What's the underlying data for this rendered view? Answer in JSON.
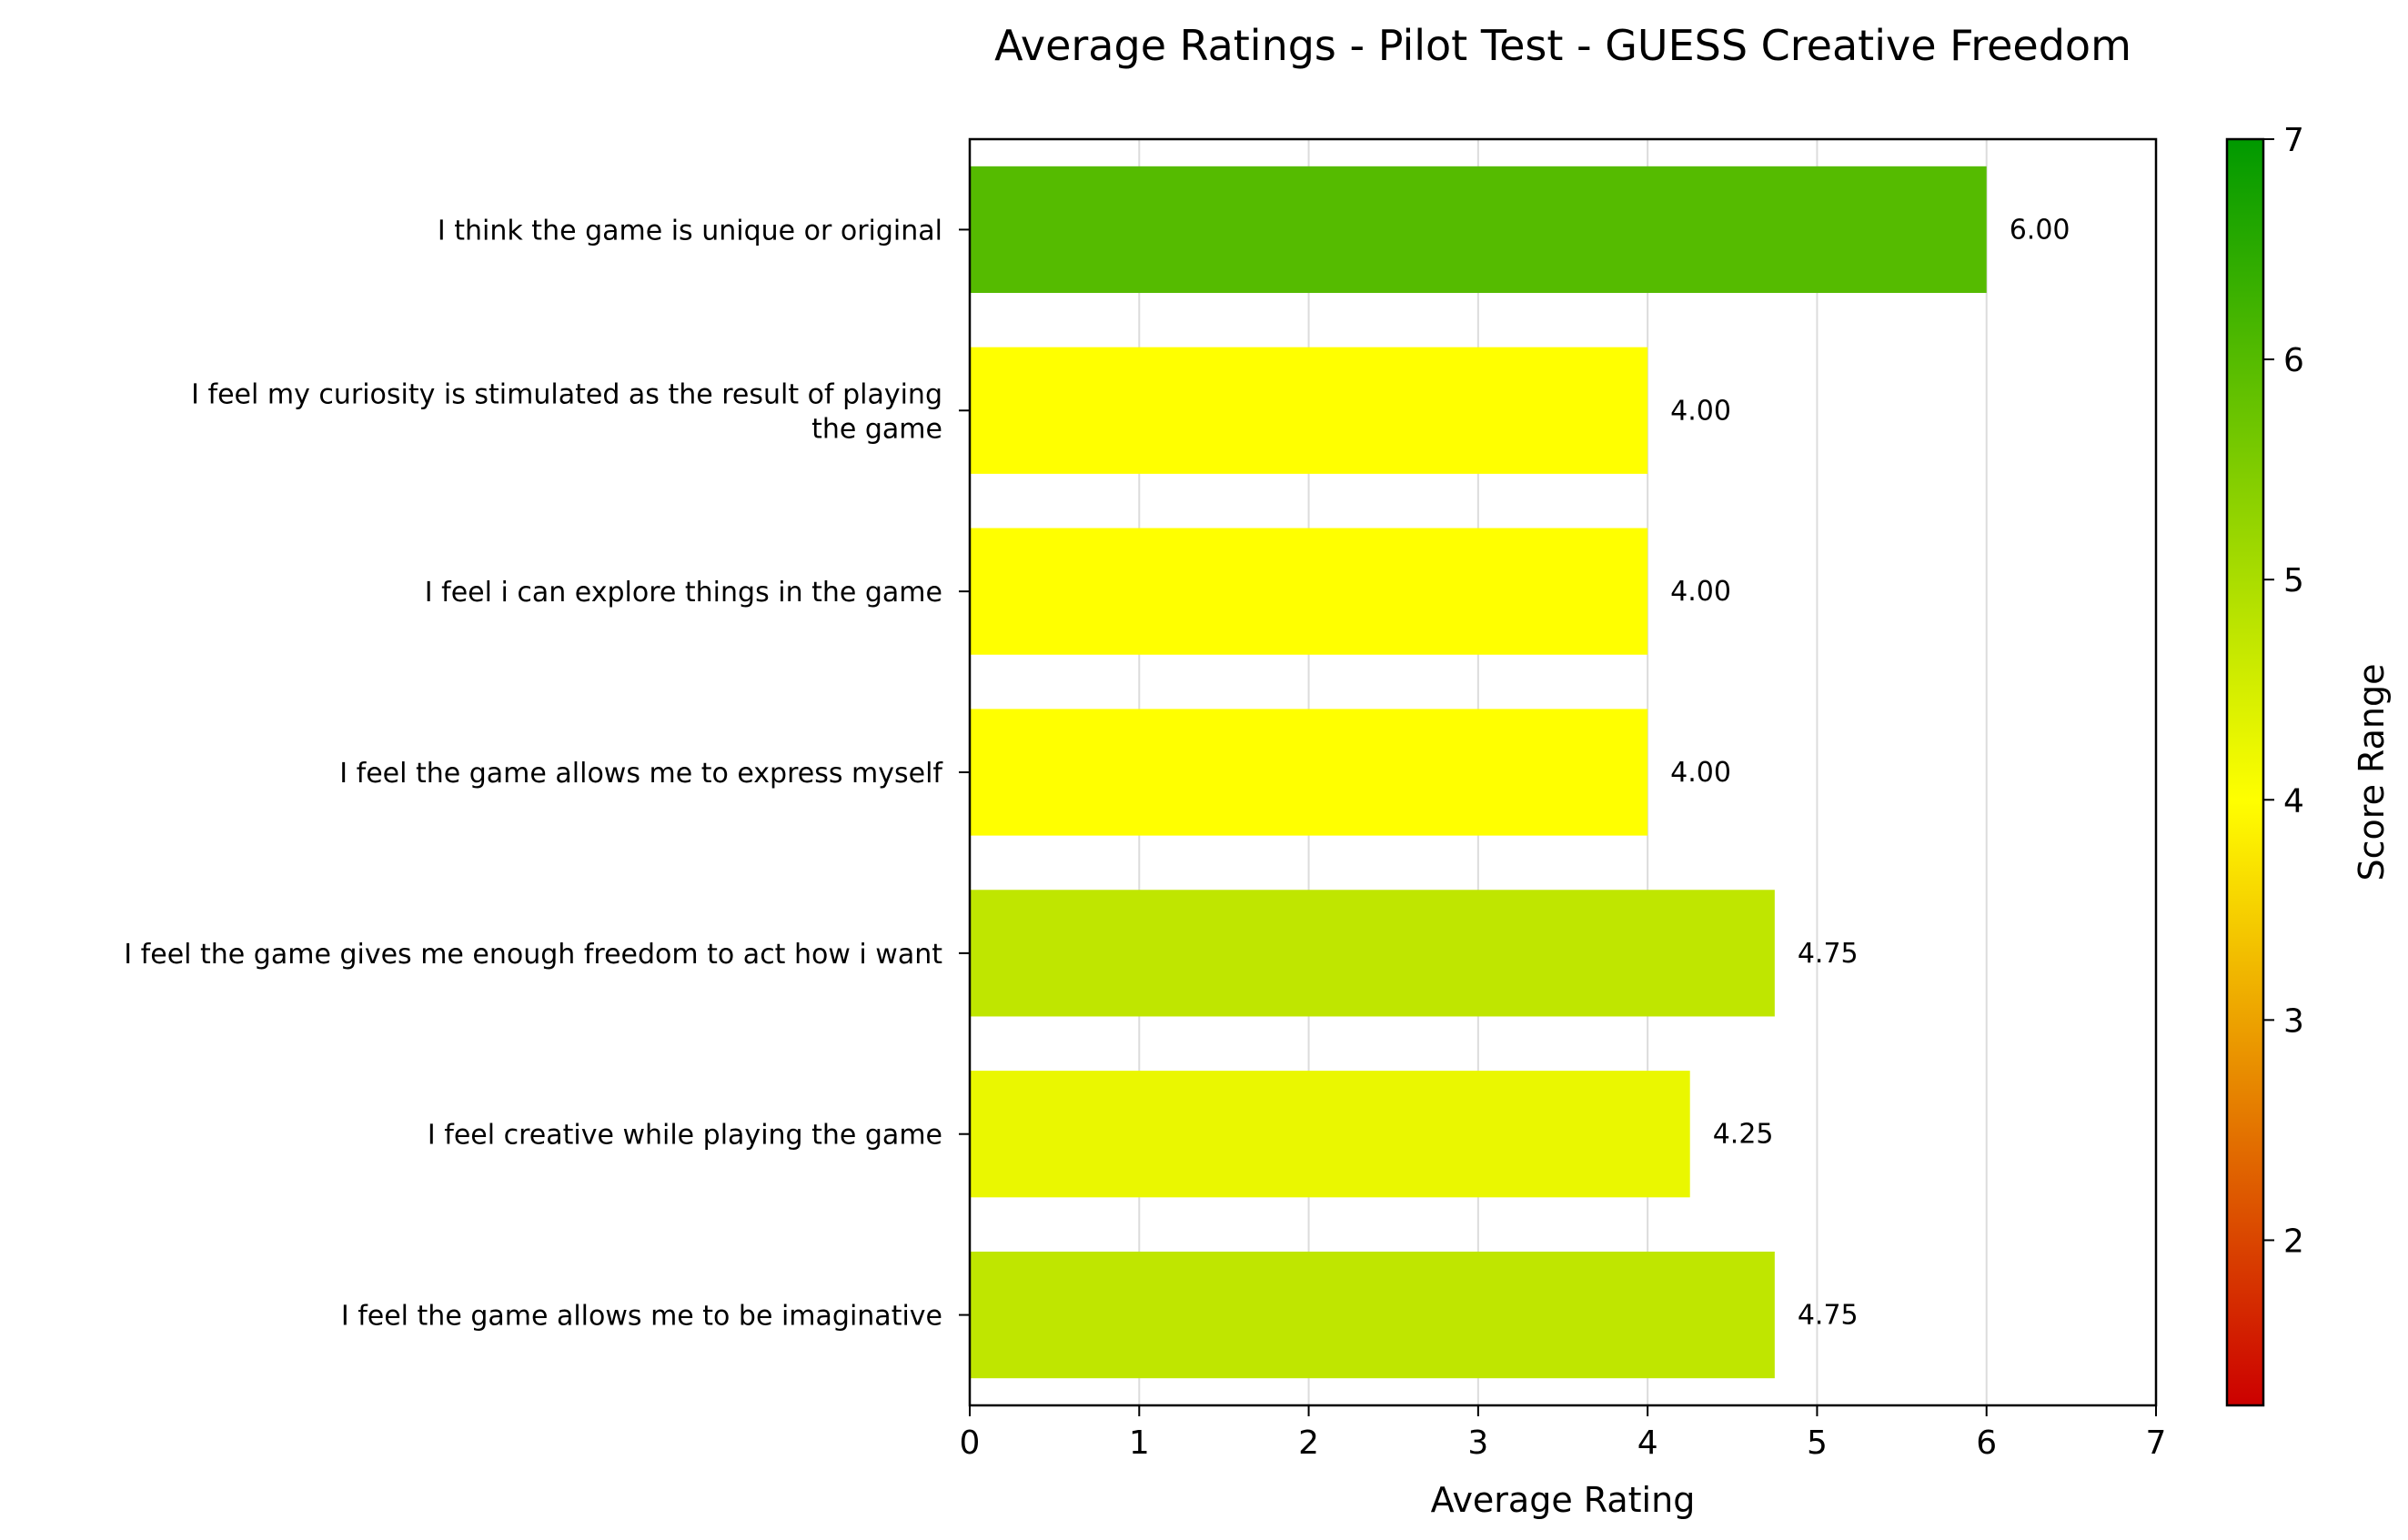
{
  "chart_data": {
    "type": "bar",
    "orientation": "horizontal",
    "title": "Average Ratings - Pilot Test - GUESS Creative Freedom",
    "xlabel": "Average Rating",
    "ylabel": "",
    "xlim": [
      0,
      7
    ],
    "x_ticks": [
      "0",
      "1",
      "2",
      "3",
      "4",
      "5",
      "6",
      "7"
    ],
    "grid": "vertical",
    "categories": [
      [
        "I think the game is unique or original"
      ],
      [
        "I feel my curiosity is stimulated as the result of playing",
        "the game"
      ],
      [
        "I feel i can explore things in the game"
      ],
      [
        "I feel the game allows me to express myself "
      ],
      [
        "I feel the game gives me enough freedom to act how i want"
      ],
      [
        "I feel creative while playing the game"
      ],
      [
        "I feel the game allows me to be imaginative"
      ]
    ],
    "values": [
      6.0,
      4.0,
      4.0,
      4.0,
      4.75,
      4.25,
      4.75
    ],
    "value_labels": [
      "6.00",
      "4.00",
      "4.00",
      "4.00",
      "4.75",
      "4.25",
      "4.75"
    ],
    "colorbar": {
      "label": "Score Range",
      "range": [
        1.25,
        7
      ],
      "ticks": [
        "2",
        "3",
        "4",
        "5",
        "6",
        "7"
      ],
      "colors": [
        "#cc0000",
        "#ffff00",
        "#009900"
      ],
      "color_stops": [
        1.25,
        4.0,
        7.0
      ]
    }
  }
}
